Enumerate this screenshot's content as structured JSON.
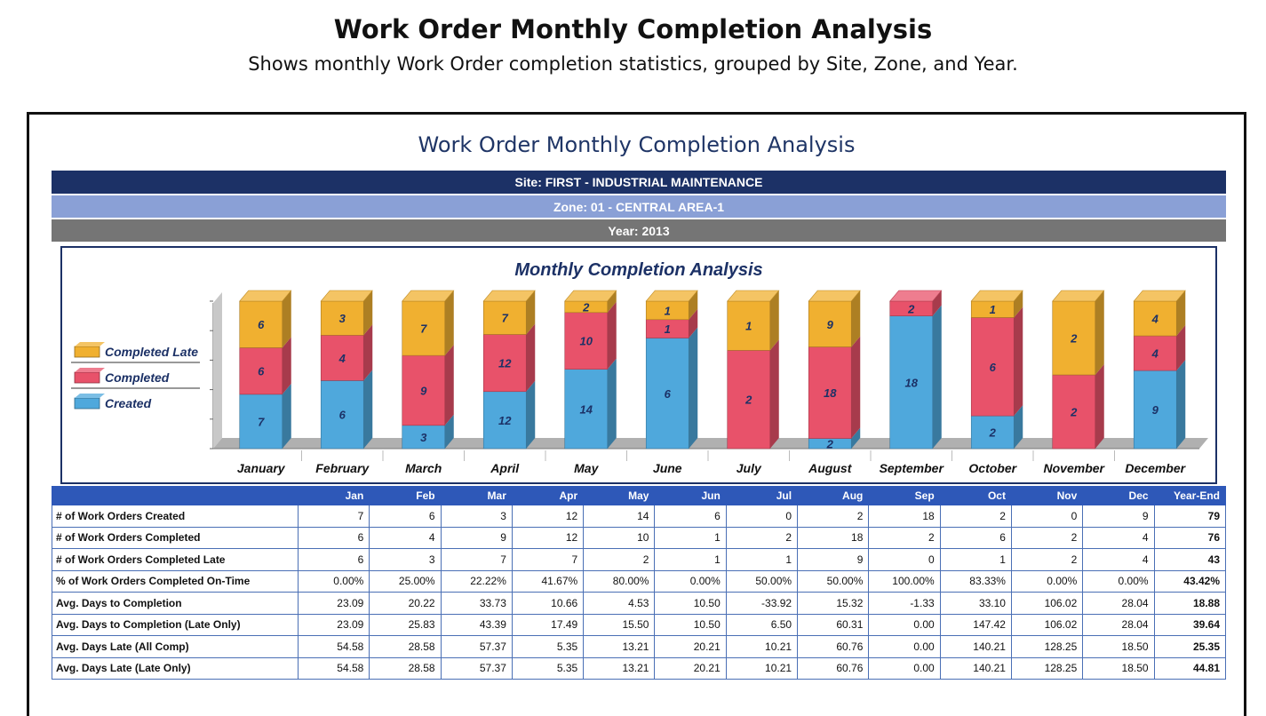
{
  "page": {
    "title": "Work Order Monthly Completion Analysis",
    "subtitle": "Shows monthly Work Order completion statistics, grouped by Site, Zone, and Year."
  },
  "report": {
    "title": "Work Order Monthly Completion Analysis",
    "site": "Site: FIRST - INDUSTRIAL MAINTENANCE",
    "zone": "Zone: 01 - CENTRAL AREA-1",
    "year": "Year: 2013"
  },
  "colors": {
    "created": "#4fa8dc",
    "completed": "#e8526a",
    "completed_late": "#f0b030",
    "header_dark": "#1c3166",
    "header_zone": "#8aa0d6",
    "header_year": "#757575",
    "table_header": "#2e58b8"
  },
  "chart_data": {
    "type": "bar",
    "stacked": true,
    "style": "3d",
    "title": "Monthly Completion Analysis",
    "categories": [
      "January",
      "February",
      "March",
      "April",
      "May",
      "June",
      "July",
      "August",
      "September",
      "October",
      "November",
      "December"
    ],
    "series": [
      {
        "name": "Created",
        "color": "#4fa8dc",
        "values": [
          7,
          6,
          3,
          12,
          14,
          6,
          0,
          2,
          18,
          2,
          0,
          9
        ]
      },
      {
        "name": "Completed",
        "color": "#e8526a",
        "values": [
          6,
          4,
          9,
          12,
          10,
          1,
          2,
          18,
          2,
          6,
          2,
          4
        ]
      },
      {
        "name": "Completed Late",
        "color": "#f0b030",
        "values": [
          6,
          3,
          7,
          7,
          2,
          1,
          1,
          9,
          0,
          1,
          2,
          4
        ]
      }
    ],
    "legend_position": "left"
  },
  "table": {
    "columns": [
      "Jan",
      "Feb",
      "Mar",
      "Apr",
      "May",
      "Jun",
      "Jul",
      "Aug",
      "Sep",
      "Oct",
      "Nov",
      "Dec",
      "Year-End"
    ],
    "rows": [
      {
        "label": "# of Work Orders Created",
        "values": [
          "7",
          "6",
          "3",
          "12",
          "14",
          "6",
          "0",
          "2",
          "18",
          "2",
          "0",
          "9"
        ],
        "year_end": "79"
      },
      {
        "label": "# of Work Orders Completed",
        "values": [
          "6",
          "4",
          "9",
          "12",
          "10",
          "1",
          "2",
          "18",
          "2",
          "6",
          "2",
          "4"
        ],
        "year_end": "76"
      },
      {
        "label": "# of Work Orders Completed Late",
        "values": [
          "6",
          "3",
          "7",
          "7",
          "2",
          "1",
          "1",
          "9",
          "0",
          "1",
          "2",
          "4"
        ],
        "year_end": "43"
      },
      {
        "label": "% of Work Orders Completed On-Time",
        "values": [
          "0.00%",
          "25.00%",
          "22.22%",
          "41.67%",
          "80.00%",
          "0.00%",
          "50.00%",
          "50.00%",
          "100.00%",
          "83.33%",
          "0.00%",
          "0.00%"
        ],
        "year_end": "43.42%"
      },
      {
        "label": "Avg. Days to Completion",
        "values": [
          "23.09",
          "20.22",
          "33.73",
          "10.66",
          "4.53",
          "10.50",
          "-33.92",
          "15.32",
          "-1.33",
          "33.10",
          "106.02",
          "28.04"
        ],
        "year_end": "18.88"
      },
      {
        "label": "Avg. Days to Completion (Late Only)",
        "values": [
          "23.09",
          "25.83",
          "43.39",
          "17.49",
          "15.50",
          "10.50",
          "6.50",
          "60.31",
          "0.00",
          "147.42",
          "106.02",
          "28.04"
        ],
        "year_end": "39.64"
      },
      {
        "label": "Avg. Days Late (All Comp)",
        "values": [
          "54.58",
          "28.58",
          "57.37",
          "5.35",
          "13.21",
          "20.21",
          "10.21",
          "60.76",
          "0.00",
          "140.21",
          "128.25",
          "18.50"
        ],
        "year_end": "25.35"
      },
      {
        "label": "Avg. Days Late (Late Only)",
        "values": [
          "54.58",
          "28.58",
          "57.37",
          "5.35",
          "13.21",
          "20.21",
          "10.21",
          "60.76",
          "0.00",
          "140.21",
          "128.25",
          "18.50"
        ],
        "year_end": "44.81"
      }
    ]
  }
}
